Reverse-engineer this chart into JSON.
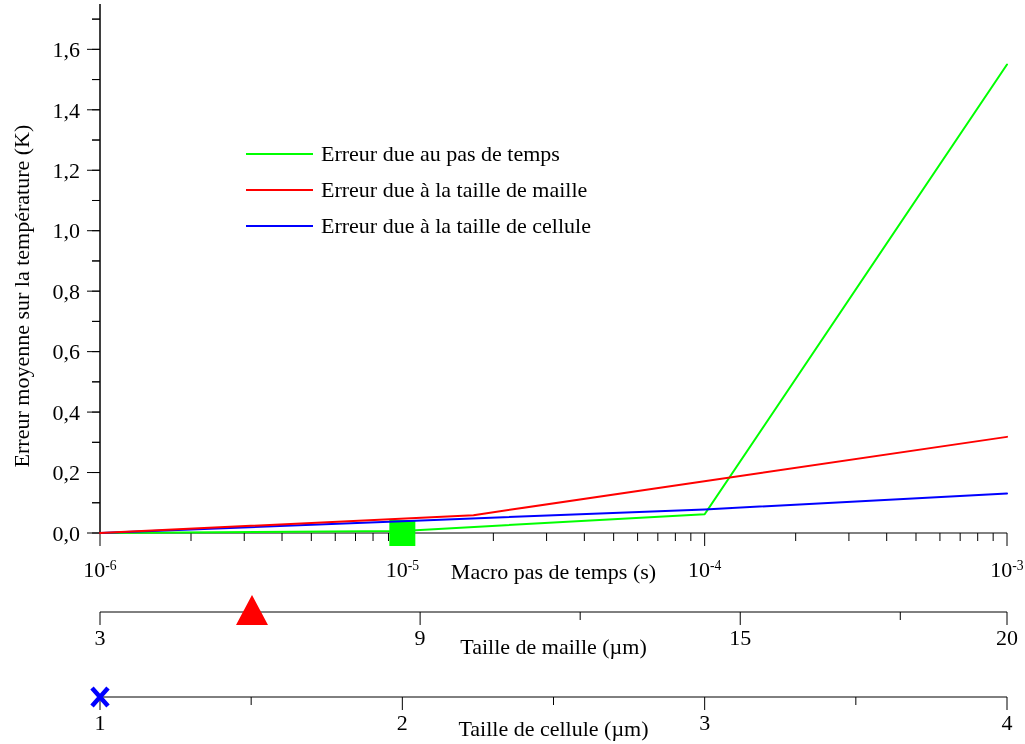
{
  "chart_data": [
    {
      "type": "line",
      "ylabel": "Erreur moyenne sur la température (K)",
      "xlabel": "Macro pas de temps (s)",
      "x2label": "Taille de cellule (µm)",
      "log": "x",
      "xlim": [
        1e-06,
        0.001
      ],
      "xticks": [
        {
          "value": 1e-06,
          "label": "10$^{-6}$"
        },
        {
          "value": 2e-06,
          "label": null
        },
        {
          "value": 3e-06,
          "label": null
        },
        {
          "value": 4e-06,
          "label": null
        },
        {
          "value": 5e-06,
          "label": null
        },
        {
          "value": 6e-06,
          "label": null
        },
        {
          "value": 7e-06,
          "label": null
        },
        {
          "value": 8e-06,
          "label": null
        },
        {
          "value": 9e-06,
          "label": null
        },
        {
          "value": 1e-05,
          "label": "10$^{-5}$"
        },
        {
          "value": 2e-05,
          "label": null
        },
        {
          "value": 3e-05,
          "label": null
        },
        {
          "value": 4e-05,
          "label": null
        },
        {
          "value": 5e-05,
          "label": null
        },
        {
          "value": 6e-05,
          "label": null
        },
        {
          "value": 7e-05,
          "label": null
        },
        {
          "value": 8e-05,
          "label": null
        },
        {
          "value": 9e-05,
          "label": null
        },
        {
          "value": 0.0001,
          "label": "10$^{-4}$"
        },
        {
          "value": 0.0002,
          "label": null
        },
        {
          "value": 0.0003,
          "label": null
        },
        {
          "value": 0.0004,
          "label": null
        },
        {
          "value": 0.0005,
          "label": null
        },
        {
          "value": 0.0006,
          "label": null
        },
        {
          "value": 0.0007,
          "label": null
        },
        {
          "value": 0.0008,
          "label": null
        },
        {
          "value": 0.0009,
          "label": null
        },
        {
          "value": 0.001,
          "label": "10$^{-3}$"
        }
      ],
      "x2lim": [
        1,
        4
      ],
      "x2ticks": [
        1,
        2,
        3,
        4
      ],
      "ylim": [
        0,
        1.75
      ],
      "yticks": [
        {
          "value": 0,
          "label": "0,0"
        },
        {
          "value": 0.1,
          "label": null
        },
        {
          "value": 0.2,
          "label": "0,2"
        },
        {
          "value": 0.3,
          "label": null
        },
        {
          "value": 0.4,
          "label": "0,4"
        },
        {
          "value": 0.5,
          "label": null
        },
        {
          "value": 0.6,
          "label": "0,6"
        },
        {
          "value": 0.7,
          "label": null
        },
        {
          "value": 0.8,
          "label": "0,8"
        },
        {
          "value": 0.9,
          "label": null
        },
        {
          "value": 1.0,
          "label": "1,0"
        },
        {
          "value": 1.1,
          "label": null
        },
        {
          "value": 1.2,
          "label": "1,2"
        },
        {
          "value": 1.3,
          "label": null
        },
        {
          "value": 1.4,
          "label": "1,4"
        },
        {
          "value": 1.5,
          "label": null
        },
        {
          "value": 1.6,
          "label": "1,6"
        },
        {
          "value": 1.7,
          "label": null
        }
      ],
      "legend": "top left",
      "series": [
        {
          "name": "Erreur due au pas de temps",
          "color": "#00ff00",
          "x": [
            1e-06,
            1e-05,
            0.0001,
            0.001
          ],
          "values": [
            0,
            0.007,
            0.062,
            1.55
          ]
        },
        {
          "name": "Erreur due à la taille de cellule",
          "color": "#0000ff",
          "axis": "x2",
          "x": [
            1,
            2,
            3,
            4
          ],
          "values": [
            0,
            0.039,
            0.078,
            0.131
          ]
        },
        {
          "type": "scatter",
          "color": "#00ff00",
          "marker": "square",
          "x": [
            1e-05
          ],
          "values": [
            0
          ]
        }
      ]
    },
    {
      "type": "line",
      "xlabel": "Taille de maille (µm)",
      "xlim": [
        3,
        20
      ],
      "xticks": [
        3,
        9,
        15,
        20
      ],
      "ylim": [
        0,
        1.75
      ],
      "yticks": [
        {
          "value": 0,
          "label": null
        },
        {
          "value": 0.1,
          "label": null
        },
        {
          "value": 0.2,
          "label": null
        },
        {
          "value": 0.3,
          "label": null
        },
        {
          "value": 0.4,
          "label": null
        },
        {
          "value": 0.5,
          "label": null
        },
        {
          "value": 0.6,
          "label": null
        },
        {
          "value": 0.7,
          "label": null
        },
        {
          "value": 0.8,
          "label": null
        },
        {
          "value": 0.9,
          "label": null
        },
        {
          "value": 1.0,
          "label": null
        },
        {
          "value": 1.1,
          "label": null
        },
        {
          "value": 1.2,
          "label": null
        },
        {
          "value": 1.3,
          "label": null
        },
        {
          "value": 1.4,
          "label": null
        },
        {
          "value": 1.5,
          "label": null
        },
        {
          "value": 1.6,
          "label": null
        },
        {
          "value": 1.7,
          "label": null
        }
      ],
      "tick_labels": "x",
      "legend": "top left",
      "series": [
        {
          "name": "Erreur due à la taille de maille",
          "color": "#ff0000",
          "x": [
            3,
            10,
            20
          ],
          "values": [
            0,
            0.059,
            0.318
          ]
        }
      ]
    }
  ]
}
